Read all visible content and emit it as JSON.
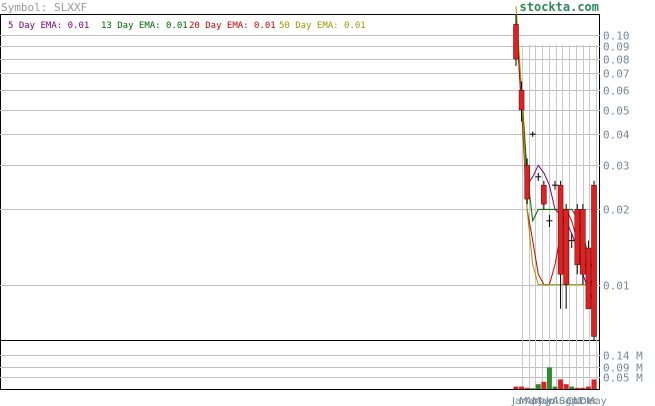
{
  "header": {
    "symbol_text": "Symbol: SLXXF",
    "brand": "stockta.com"
  },
  "legend": [
    {
      "label": "5 Day EMA: 0.01",
      "color": "#800080"
    },
    {
      "label": "13 Day EMA: 0.01",
      "color": "#006400"
    },
    {
      "label": "20 Day EMA: 0.01",
      "color": "#cc0000"
    },
    {
      "label": "50 Day EMA: 0.01",
      "color": "#999900"
    }
  ],
  "chart_data": {
    "type": "candlestick",
    "price_axis": {
      "scale": "log",
      "ticks": [
        "0.10",
        "0.09",
        "0.08",
        "0.07",
        "0.06",
        "0.05",
        "0.04",
        "0.03",
        "0.02",
        "0.01"
      ],
      "tick_values": [
        0.1,
        0.09,
        0.08,
        0.07,
        0.06,
        0.05,
        0.04,
        0.03,
        0.02,
        0.01
      ],
      "range": [
        0.006,
        0.12
      ]
    },
    "volume_axis": {
      "ticks": [
        "0.14 M",
        "0.09 M",
        "0.05 M"
      ],
      "tick_values": [
        0.14,
        0.09,
        0.05
      ],
      "unit": "M",
      "range": [
        0,
        0.2
      ]
    },
    "x_axis_labels": [
      "Jan",
      "Mar",
      "Apr",
      "May",
      "Jun",
      "Jul",
      "Aug",
      "Sep",
      "Oct",
      "Nov",
      "Dec",
      "May"
    ],
    "candles": [
      {
        "o": 0.11,
        "c": 0.08,
        "h": 0.12,
        "l": 0.075,
        "dir": "down"
      },
      {
        "o": 0.06,
        "c": 0.05,
        "h": 0.065,
        "l": 0.045,
        "dir": "down"
      },
      {
        "o": 0.03,
        "c": 0.022,
        "h": 0.032,
        "l": 0.021,
        "dir": "down"
      },
      {
        "o": 0.04,
        "c": 0.04,
        "h": 0.041,
        "l": 0.039,
        "dir": "flat"
      },
      {
        "o": 0.027,
        "c": 0.027,
        "h": 0.028,
        "l": 0.026,
        "dir": "flat"
      },
      {
        "o": 0.025,
        "c": 0.021,
        "h": 0.026,
        "l": 0.02,
        "dir": "down"
      },
      {
        "o": 0.018,
        "c": 0.018,
        "h": 0.019,
        "l": 0.017,
        "dir": "flat"
      },
      {
        "o": 0.025,
        "c": 0.025,
        "h": 0.026,
        "l": 0.024,
        "dir": "flat"
      },
      {
        "o": 0.025,
        "c": 0.011,
        "h": 0.026,
        "l": 0.008,
        "dir": "down"
      },
      {
        "o": 0.02,
        "c": 0.01,
        "h": 0.021,
        "l": 0.008,
        "dir": "down"
      },
      {
        "o": 0.015,
        "c": 0.015,
        "h": 0.016,
        "l": 0.014,
        "dir": "flat"
      },
      {
        "o": 0.02,
        "c": 0.012,
        "h": 0.021,
        "l": 0.011,
        "dir": "down"
      },
      {
        "o": 0.02,
        "c": 0.011,
        "h": 0.021,
        "l": 0.01,
        "dir": "down"
      },
      {
        "o": 0.014,
        "c": 0.008,
        "h": 0.015,
        "l": 0.008,
        "dir": "down"
      },
      {
        "o": 0.025,
        "c": 0.0062,
        "h": 0.026,
        "l": 0.006,
        "dir": "down"
      }
    ],
    "volumes": [
      0.01,
      0.01,
      0.005,
      0.003,
      0.02,
      0.03,
      0.09,
      0.01,
      0.04,
      0.02,
      0.01,
      0.005,
      0.005,
      0.01,
      0.04
    ],
    "ema": {
      "ema5": [
        0.12,
        0.05,
        0.025,
        0.027,
        0.03,
        0.028,
        0.025,
        0.02,
        0.019,
        0.018,
        0.016,
        0.014,
        0.011,
        0.0095,
        0.0085
      ],
      "ema13": [
        0.11,
        0.06,
        0.028,
        0.018,
        0.02,
        0.02,
        0.02,
        0.02,
        0.02,
        0.02,
        0.02,
        0.0185,
        0.016,
        0.013,
        0.011
      ],
      "ema20": [
        0.12,
        0.05,
        0.02,
        0.015,
        0.011,
        0.01,
        0.01,
        0.012,
        0.016,
        0.02,
        0.018,
        0.015,
        0.013,
        0.011,
        0.0095
      ],
      "ema50": [
        0.13,
        0.06,
        0.02,
        0.012,
        0.01,
        0.01,
        0.01,
        0.01,
        0.01,
        0.01,
        0.01,
        0.01,
        0.01,
        0.01,
        0.01
      ]
    }
  }
}
